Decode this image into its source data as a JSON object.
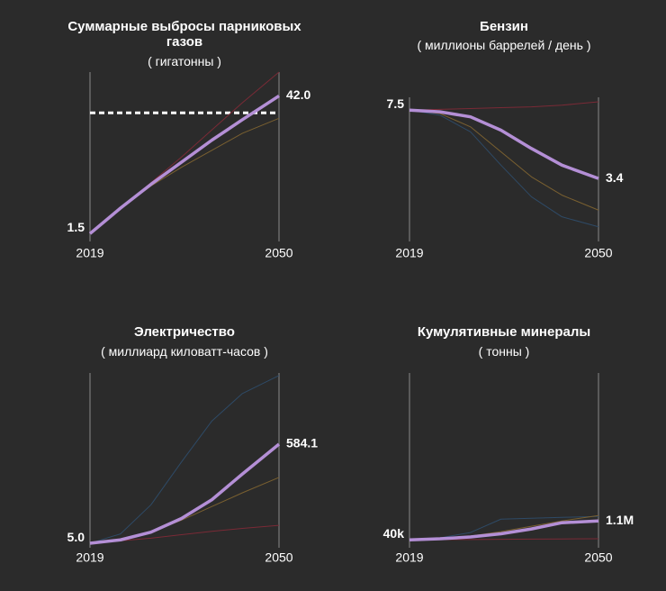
{
  "chart_data": [
    {
      "type": "line",
      "title": "Суммарные выбросы парниковых газов",
      "subtitle": "( гигатонны )",
      "x": [
        2019,
        2024,
        2029,
        2034,
        2039,
        2044,
        2050
      ],
      "xlim": [
        2019,
        2050
      ],
      "xticks": [
        2019,
        2050
      ],
      "ylim": [
        0,
        49
      ],
      "reference_line": 37,
      "series": [
        {
          "color": "#7a2a36",
          "values": [
            1.5,
            9,
            16.5,
            24,
            32,
            40,
            49
          ]
        },
        {
          "color": "#7a6030",
          "values": [
            1.5,
            9,
            15.5,
            21,
            26,
            31,
            35.4
          ]
        },
        {
          "color": "#b48fd6",
          "values": [
            1.5,
            9,
            16,
            22.5,
            29,
            35,
            42
          ],
          "value_labels": [
            "1.5",
            null,
            null,
            null,
            null,
            null,
            "42.0"
          ]
        }
      ]
    },
    {
      "type": "line",
      "title": "Бензин",
      "subtitle": "( миллионы баррелей / день )",
      "x": [
        2019,
        2024,
        2029,
        2034,
        2039,
        2044,
        2050
      ],
      "xlim": [
        2019,
        2050
      ],
      "xticks": [
        2019,
        2050
      ],
      "ylim": [
        0,
        8.3
      ],
      "series": [
        {
          "color": "#7a2a36",
          "values": [
            7.5,
            7.55,
            7.6,
            7.65,
            7.7,
            7.8,
            8.0
          ]
        },
        {
          "color": "#7a6030",
          "values": [
            7.5,
            7.3,
            6.5,
            5.0,
            3.5,
            2.4,
            1.5
          ]
        },
        {
          "color": "#2e4a66",
          "values": [
            7.5,
            7.2,
            6.2,
            4.2,
            2.3,
            1.1,
            0.5
          ]
        },
        {
          "color": "#b48fd6",
          "values": [
            7.5,
            7.4,
            7.1,
            6.3,
            5.2,
            4.2,
            3.4
          ],
          "value_labels": [
            "7.5",
            null,
            null,
            null,
            null,
            null,
            "3.4"
          ]
        }
      ]
    },
    {
      "type": "line",
      "title": "Электричество",
      "subtitle": "( миллиард киловатт-часов )",
      "x": [
        2019,
        2024,
        2029,
        2034,
        2039,
        2044,
        2050
      ],
      "xlim": [
        2019,
        2050
      ],
      "xticks": [
        2019,
        2050
      ],
      "ylim": [
        0,
        1000
      ],
      "series": [
        {
          "color": "#2e4a66",
          "values": [
            5,
            60,
            230,
            480,
            720,
            880,
            985
          ]
        },
        {
          "color": "#7a6030",
          "values": [
            5,
            25,
            70,
            140,
            220,
            300,
            390
          ]
        },
        {
          "color": "#7a2a36",
          "values": [
            5,
            20,
            35,
            55,
            75,
            92,
            110
          ]
        },
        {
          "color": "#b48fd6",
          "values": [
            5,
            25,
            70,
            150,
            260,
            410,
            584.1
          ],
          "value_labels": [
            "5.0",
            null,
            null,
            null,
            null,
            null,
            "584.1"
          ]
        }
      ]
    },
    {
      "type": "line",
      "title": "Кумулятивные минералы",
      "subtitle": "( тонны )",
      "x": [
        2019,
        2024,
        2029,
        2034,
        2039,
        2044,
        2050
      ],
      "xlim": [
        2019,
        2050
      ],
      "xticks": [
        2019,
        2050
      ],
      "ylim": [
        0,
        9600000
      ],
      "series": [
        {
          "color": "#2e4a66",
          "values": [
            40000,
            150000,
            450000,
            1200000,
            1250000,
            1300000,
            1350000
          ]
        },
        {
          "color": "#7a6030",
          "values": [
            40000,
            120000,
            250000,
            500000,
            800000,
            1100000,
            1400000
          ]
        },
        {
          "color": "#7a2a36",
          "values": [
            40000,
            50000,
            60000,
            70000,
            80000,
            90000,
            100000
          ]
        },
        {
          "color": "#b48fd6",
          "values": [
            40000,
            100000,
            200000,
            380000,
            650000,
            1000000,
            1100000
          ],
          "value_labels": [
            "40k",
            null,
            null,
            null,
            null,
            null,
            "1.1M"
          ]
        }
      ]
    }
  ]
}
